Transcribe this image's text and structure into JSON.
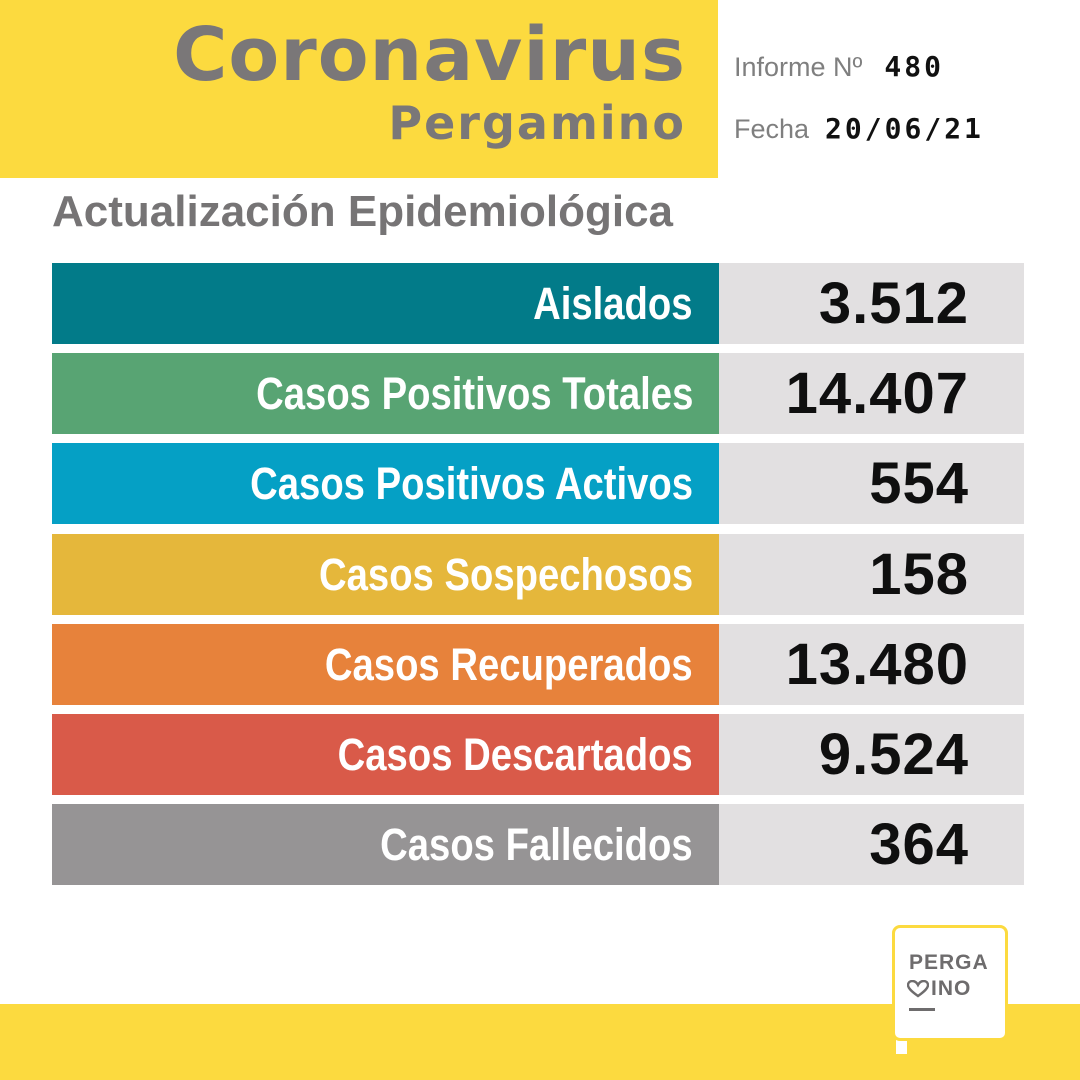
{
  "header": {
    "title": "Coronavirus",
    "subtitle": "Pergamino",
    "informe_label": "Informe Nº",
    "informe_value": "480",
    "fecha_label": "Fecha",
    "fecha_value": "20/06/21"
  },
  "section_title": "Actualización Epidemiológica",
  "stats": [
    {
      "label": "Aislados",
      "value": "3.512",
      "color": "#027b89"
    },
    {
      "label": "Casos Positivos Totales",
      "value": "14.407",
      "color": "#58a473"
    },
    {
      "label": "Casos Positivos Activos",
      "value": "554",
      "color": "#05a0c5"
    },
    {
      "label": "Casos Sospechosos",
      "value": "158",
      "color": "#e5b73b"
    },
    {
      "label": "Casos Recuperados",
      "value": "13.480",
      "color": "#e7823b"
    },
    {
      "label": "Casos Descartados",
      "value": "9.524",
      "color": "#d95a49"
    },
    {
      "label": "Casos Fallecidos",
      "value": "364",
      "color": "#969495"
    }
  ],
  "logo": {
    "line1": "PERGA",
    "line2": "INO",
    "icon": "heart-icon"
  },
  "colors": {
    "brand_yellow": "#fcda3f",
    "title_gray": "#7a7778",
    "value_panel": "#e2e0e1"
  }
}
